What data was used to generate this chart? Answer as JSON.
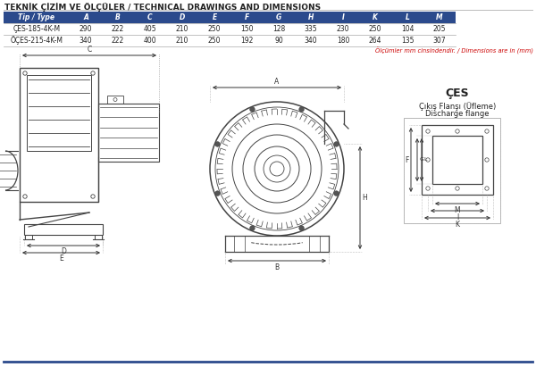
{
  "title": "TEKNİK ÇİZİM VE ÖLÇÜLER / TECHNICAL DRAWINGS AND DIMENSIONS",
  "header_bg": "#2b4a8c",
  "header_text_color": "#ffffff",
  "columns": [
    "Tip / Type",
    "A",
    "B",
    "C",
    "D",
    "E",
    "F",
    "G",
    "H",
    "I",
    "K",
    "L",
    "M"
  ],
  "rows": [
    [
      "ÇES-185-4K-M",
      "290",
      "222",
      "405",
      "210",
      "250",
      "150",
      "128",
      "335",
      "230",
      "250",
      "104",
      "205"
    ],
    [
      "ÖÇES-215-4K-M",
      "340",
      "222",
      "400",
      "210",
      "250",
      "192",
      "90",
      "340",
      "180",
      "264",
      "135",
      "307"
    ]
  ],
  "note": "Ölçümler mm cinsindendir. / Dimensions are in (mm)",
  "note_color": "#cc0000",
  "ces_label": "ÇES",
  "ces_sub1": "Çıkış Flanşı (Üfleme)",
  "ces_sub2": "Discharge flange",
  "bg_color": "#ffffff",
  "line_color": "#333333",
  "drawing_line_color": "#444444"
}
